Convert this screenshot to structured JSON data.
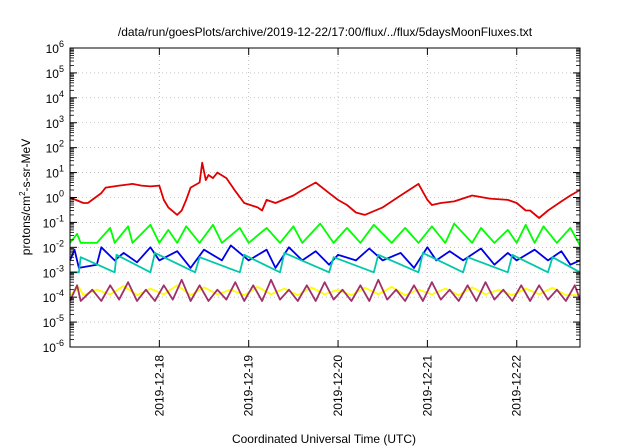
{
  "chart_data": {
    "type": "line",
    "title": "/data/run/goesPlots/archive/2019-12-22/17:00/flux/../flux/5daysMoonFluxes.txt",
    "xlabel": "Coordinated Universal Time (UTC)",
    "ylabel": "protons/cm2-s-sr-MeV",
    "ylabel_base": "protons/cm",
    "ylabel_sup": "2",
    "ylabel_rest": "-s-sr-MeV",
    "y_scale": "log",
    "ylim": [
      1e-06,
      1000000.0
    ],
    "y_tick_exponents": [
      -6,
      -5,
      -4,
      -3,
      -2,
      -1,
      0,
      1,
      2,
      3,
      4,
      5,
      6
    ],
    "xlim": [
      "2019-12-17T00:00",
      "2019-12-22T17:00"
    ],
    "x_tick_labels": [
      "2019-12-18",
      "2019-12-19",
      "2019-12-20",
      "2019-12-21",
      "2019-12-22"
    ],
    "x_tick_days": [
      1,
      2,
      3,
      4,
      5
    ],
    "x_range_days": [
      0,
      5.708
    ],
    "grid": true,
    "legend": "none",
    "series": [
      {
        "color": "#e00000",
        "x_days": [
          0,
          0.15,
          0.2,
          0.35,
          0.4,
          0.55,
          0.7,
          0.8,
          0.9,
          1.0,
          1.05,
          1.1,
          1.2,
          1.25,
          1.3,
          1.35,
          1.45,
          1.48,
          1.52,
          1.55,
          1.6,
          1.65,
          1.75,
          1.85,
          1.95,
          2.1,
          2.15,
          2.2,
          2.3,
          2.5,
          2.6,
          2.75,
          2.9,
          3.0,
          3.1,
          3.2,
          3.3,
          3.5,
          3.7,
          3.9,
          4.0,
          4.05,
          4.15,
          4.3,
          4.5,
          4.7,
          4.9,
          5.0,
          5.1,
          5.15,
          5.25,
          5.35,
          5.5,
          5.6,
          5.708
        ],
        "y_values": [
          1.0,
          0.6,
          0.6,
          1.5,
          2.5,
          3.0,
          3.5,
          3.0,
          2.8,
          3.0,
          0.8,
          0.4,
          0.2,
          0.3,
          0.8,
          2.5,
          4.0,
          25.0,
          5.0,
          8.0,
          6.0,
          10.0,
          6.0,
          1.8,
          0.6,
          0.4,
          0.3,
          0.8,
          0.6,
          1.2,
          2.0,
          4.0,
          1.5,
          0.8,
          0.5,
          0.25,
          0.2,
          0.4,
          1.2,
          3.5,
          0.8,
          0.5,
          0.6,
          0.7,
          1.2,
          0.9,
          0.8,
          0.6,
          0.3,
          0.3,
          0.15,
          0.3,
          0.7,
          1.2,
          2.0
        ]
      },
      {
        "color": "#00ff00",
        "x_days": [
          0,
          0.08,
          0.12,
          0.3,
          0.45,
          0.5,
          0.65,
          0.7,
          0.9,
          1.0,
          1.1,
          1.2,
          1.3,
          1.45,
          1.6,
          1.7,
          1.9,
          2.0,
          2.2,
          2.35,
          2.5,
          2.6,
          2.8,
          2.95,
          3.1,
          3.25,
          3.4,
          3.6,
          3.75,
          3.9,
          4.05,
          4.2,
          4.3,
          4.5,
          4.6,
          4.75,
          4.9,
          5.0,
          5.1,
          5.2,
          5.3,
          5.45,
          5.6,
          5.708
        ],
        "y_values": [
          0.015,
          0.035,
          0.015,
          0.015,
          0.06,
          0.015,
          0.07,
          0.015,
          0.08,
          0.015,
          0.05,
          0.015,
          0.07,
          0.015,
          0.08,
          0.015,
          0.06,
          0.015,
          0.06,
          0.015,
          0.07,
          0.015,
          0.09,
          0.015,
          0.06,
          0.015,
          0.08,
          0.015,
          0.06,
          0.015,
          0.07,
          0.015,
          0.09,
          0.015,
          0.06,
          0.015,
          0.05,
          0.015,
          0.08,
          0.015,
          0.07,
          0.015,
          0.06,
          0.012
        ]
      },
      {
        "color": "#0000e8",
        "x_days": [
          0,
          0.05,
          0.1,
          0.3,
          0.35,
          0.5,
          0.6,
          0.75,
          0.9,
          1.0,
          1.2,
          1.35,
          1.5,
          1.7,
          1.8,
          2.0,
          2.2,
          2.3,
          2.45,
          2.6,
          2.75,
          2.9,
          3.0,
          3.2,
          3.35,
          3.5,
          3.7,
          3.85,
          4.0,
          4.1,
          4.25,
          4.4,
          4.6,
          4.75,
          4.9,
          5.0,
          5.2,
          5.35,
          5.5,
          5.6,
          5.708
        ],
        "y_values": [
          0.003,
          0.008,
          0.0015,
          0.002,
          0.01,
          0.003,
          0.006,
          0.0025,
          0.01,
          0.003,
          0.007,
          0.0015,
          0.008,
          0.003,
          0.012,
          0.003,
          0.008,
          0.0015,
          0.01,
          0.003,
          0.007,
          0.002,
          0.005,
          0.003,
          0.009,
          0.003,
          0.006,
          0.0015,
          0.01,
          0.003,
          0.007,
          0.003,
          0.009,
          0.002,
          0.006,
          0.003,
          0.008,
          0.003,
          0.007,
          0.002,
          0.003
        ]
      },
      {
        "color": "#00c8a8",
        "x_days": [
          0,
          0.1,
          0.12,
          0.5,
          0.52,
          0.9,
          0.95,
          1.4,
          1.45,
          1.9,
          1.95,
          2.35,
          2.4,
          2.9,
          2.95,
          3.4,
          3.45,
          3.9,
          3.95,
          4.4,
          4.45,
          4.9,
          4.95,
          5.35,
          5.4,
          5.708
        ],
        "y_values": [
          0.001,
          0.001,
          0.004,
          0.001,
          0.005,
          0.001,
          0.006,
          0.001,
          0.004,
          0.001,
          0.005,
          0.001,
          0.006,
          0.001,
          0.004,
          0.001,
          0.005,
          0.001,
          0.006,
          0.001,
          0.004,
          0.001,
          0.005,
          0.001,
          0.004,
          0.001
        ]
      },
      {
        "color": "#ffff00",
        "x_days": [
          0,
          0.1,
          0.15,
          0.3,
          0.45,
          0.6,
          0.75,
          0.9,
          1.05,
          1.2,
          1.35,
          1.5,
          1.65,
          1.8,
          1.95,
          2.1,
          2.25,
          2.4,
          2.55,
          2.7,
          2.85,
          3.0,
          3.15,
          3.3,
          3.45,
          3.6,
          3.75,
          3.9,
          4.05,
          4.2,
          4.35,
          4.5,
          4.65,
          4.8,
          4.95,
          5.1,
          5.25,
          5.4,
          5.55,
          5.708
        ],
        "y_values": [
          0.00012,
          0.00025,
          0.00012,
          0.0002,
          0.00013,
          0.00028,
          0.00012,
          0.00022,
          0.00013,
          0.0003,
          0.00012,
          0.00025,
          0.00013,
          0.0002,
          0.00012,
          0.00026,
          0.00013,
          0.00022,
          0.00012,
          0.00025,
          0.00013,
          0.0002,
          0.00012,
          0.00024,
          0.00013,
          0.00026,
          0.00012,
          0.0002,
          0.00013,
          0.00022,
          0.00012,
          0.00025,
          0.00013,
          0.0002,
          0.00012,
          0.00022,
          0.00013,
          0.00024,
          0.00012,
          0.00012
        ]
      },
      {
        "color": "#a0306a",
        "x_days": [
          0,
          0.08,
          0.12,
          0.25,
          0.35,
          0.45,
          0.55,
          0.65,
          0.75,
          0.85,
          0.95,
          1.05,
          1.15,
          1.25,
          1.35,
          1.45,
          1.55,
          1.65,
          1.75,
          1.85,
          1.95,
          2.05,
          2.15,
          2.25,
          2.35,
          2.45,
          2.55,
          2.65,
          2.75,
          2.85,
          2.95,
          3.05,
          3.15,
          3.25,
          3.35,
          3.45,
          3.55,
          3.65,
          3.75,
          3.85,
          3.95,
          4.05,
          4.15,
          4.25,
          4.35,
          4.45,
          4.55,
          4.65,
          4.75,
          4.85,
          4.95,
          5.05,
          5.15,
          5.25,
          5.35,
          5.45,
          5.55,
          5.65,
          5.708
        ],
        "y_values": [
          7e-05,
          0.0003,
          7e-05,
          0.0002,
          7e-05,
          0.0003,
          8e-05,
          0.0004,
          7e-05,
          0.0002,
          7e-05,
          0.0003,
          8e-05,
          0.0005,
          7e-05,
          0.0003,
          7e-05,
          0.0002,
          8e-05,
          0.0004,
          7e-05,
          0.0003,
          7e-05,
          0.0005,
          8e-05,
          0.0002,
          7e-05,
          0.0003,
          7e-05,
          0.0004,
          8e-05,
          0.0002,
          7e-05,
          0.0003,
          7e-05,
          0.0005,
          8e-05,
          0.0002,
          7e-05,
          0.0003,
          7e-05,
          0.0004,
          8e-05,
          0.0002,
          7e-05,
          0.0003,
          7e-05,
          0.0004,
          8e-05,
          0.0002,
          7e-05,
          0.0003,
          7e-05,
          0.0003,
          8e-05,
          0.0002,
          7e-05,
          0.0003,
          8e-05
        ]
      }
    ]
  }
}
